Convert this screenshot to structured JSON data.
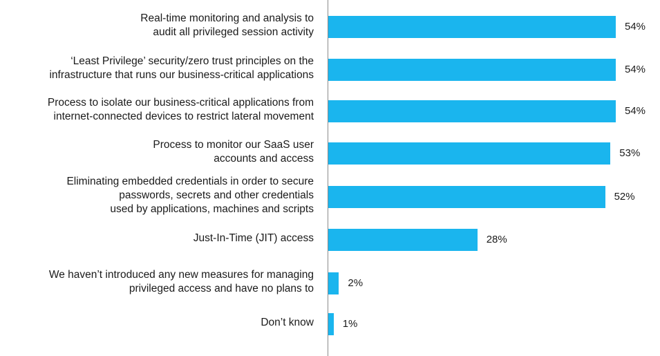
{
  "chart_data": {
    "type": "bar",
    "orientation": "horizontal",
    "categories": [
      [
        "Real-time monitoring and analysis to",
        "audit all privileged session activity"
      ],
      [
        "‘Least Privilege’ security/zero trust principles on the",
        "infrastructure that runs our business-critical applications"
      ],
      [
        "Process to isolate our business-critical applications from",
        "internet-connected devices to restrict lateral movement"
      ],
      [
        "Process to monitor our SaaS user",
        "accounts and access"
      ],
      [
        "Eliminating embedded credentials in order to secure",
        "passwords, secrets and other credentials",
        "used by applications, machines and scripts"
      ],
      [
        "Just-In-Time (JIT) access"
      ],
      [
        "We haven’t introduced any new measures for managing",
        "privileged access and have no plans to"
      ],
      [
        "Don’t know"
      ]
    ],
    "values": [
      54,
      54,
      54,
      53,
      52,
      28,
      2,
      1
    ],
    "value_labels": [
      "54%",
      "54%",
      "54%",
      "53%",
      "52%",
      "28%",
      "2%",
      "1%"
    ],
    "xlim": [
      0,
      60
    ],
    "bar_color": "#1ab5ee",
    "grid": false,
    "title": "",
    "xlabel": "",
    "ylabel": ""
  }
}
